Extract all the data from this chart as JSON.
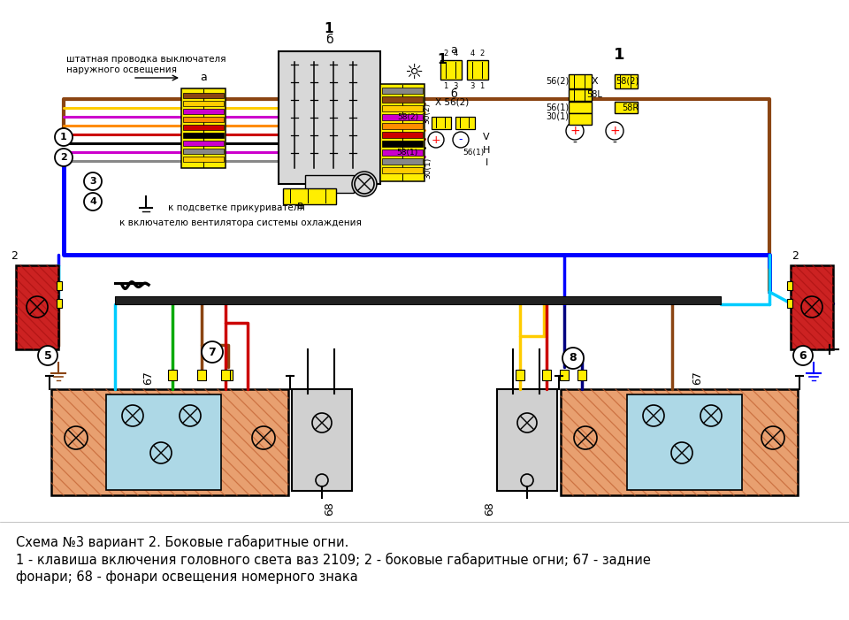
{
  "title_line1": "Схема №3 вариант 2. Боковые габаритные огни.",
  "title_line2": "1 - клавиша включения головного света ваз 2109; 2 - боковые габаритные огни; 67 - задние",
  "title_line3": "фонари; 68 - фонари освещения номерного знака",
  "bg_color": "#ffffff",
  "label_штатная": "штатная проводка выключателя",
  "label_наружного": "наружного освещения",
  "label_подсветка": "к подсветке прикуривателя",
  "label_вентилятор": "к включателю вентилятора системы охлаждения",
  "colors": {
    "blue": "#0000ff",
    "brown": "#8B4513",
    "cyan": "#00ccff",
    "green": "#008000",
    "red": "#cc0000",
    "yellow": "#ffcc00",
    "magenta": "#cc00cc",
    "orange": "#ff8c00",
    "black": "#000000",
    "white": "#ffffff",
    "gray": "#888888",
    "dark_navy": "#000080",
    "light_blue": "#add8e6",
    "lamp_orange": "#e8a070",
    "lamp_dark_orange": "#c06030",
    "connector_yellow": "#ffee00",
    "side_red": "#cc2222"
  },
  "figsize": [
    9.6,
    7.01
  ],
  "dpi": 100
}
